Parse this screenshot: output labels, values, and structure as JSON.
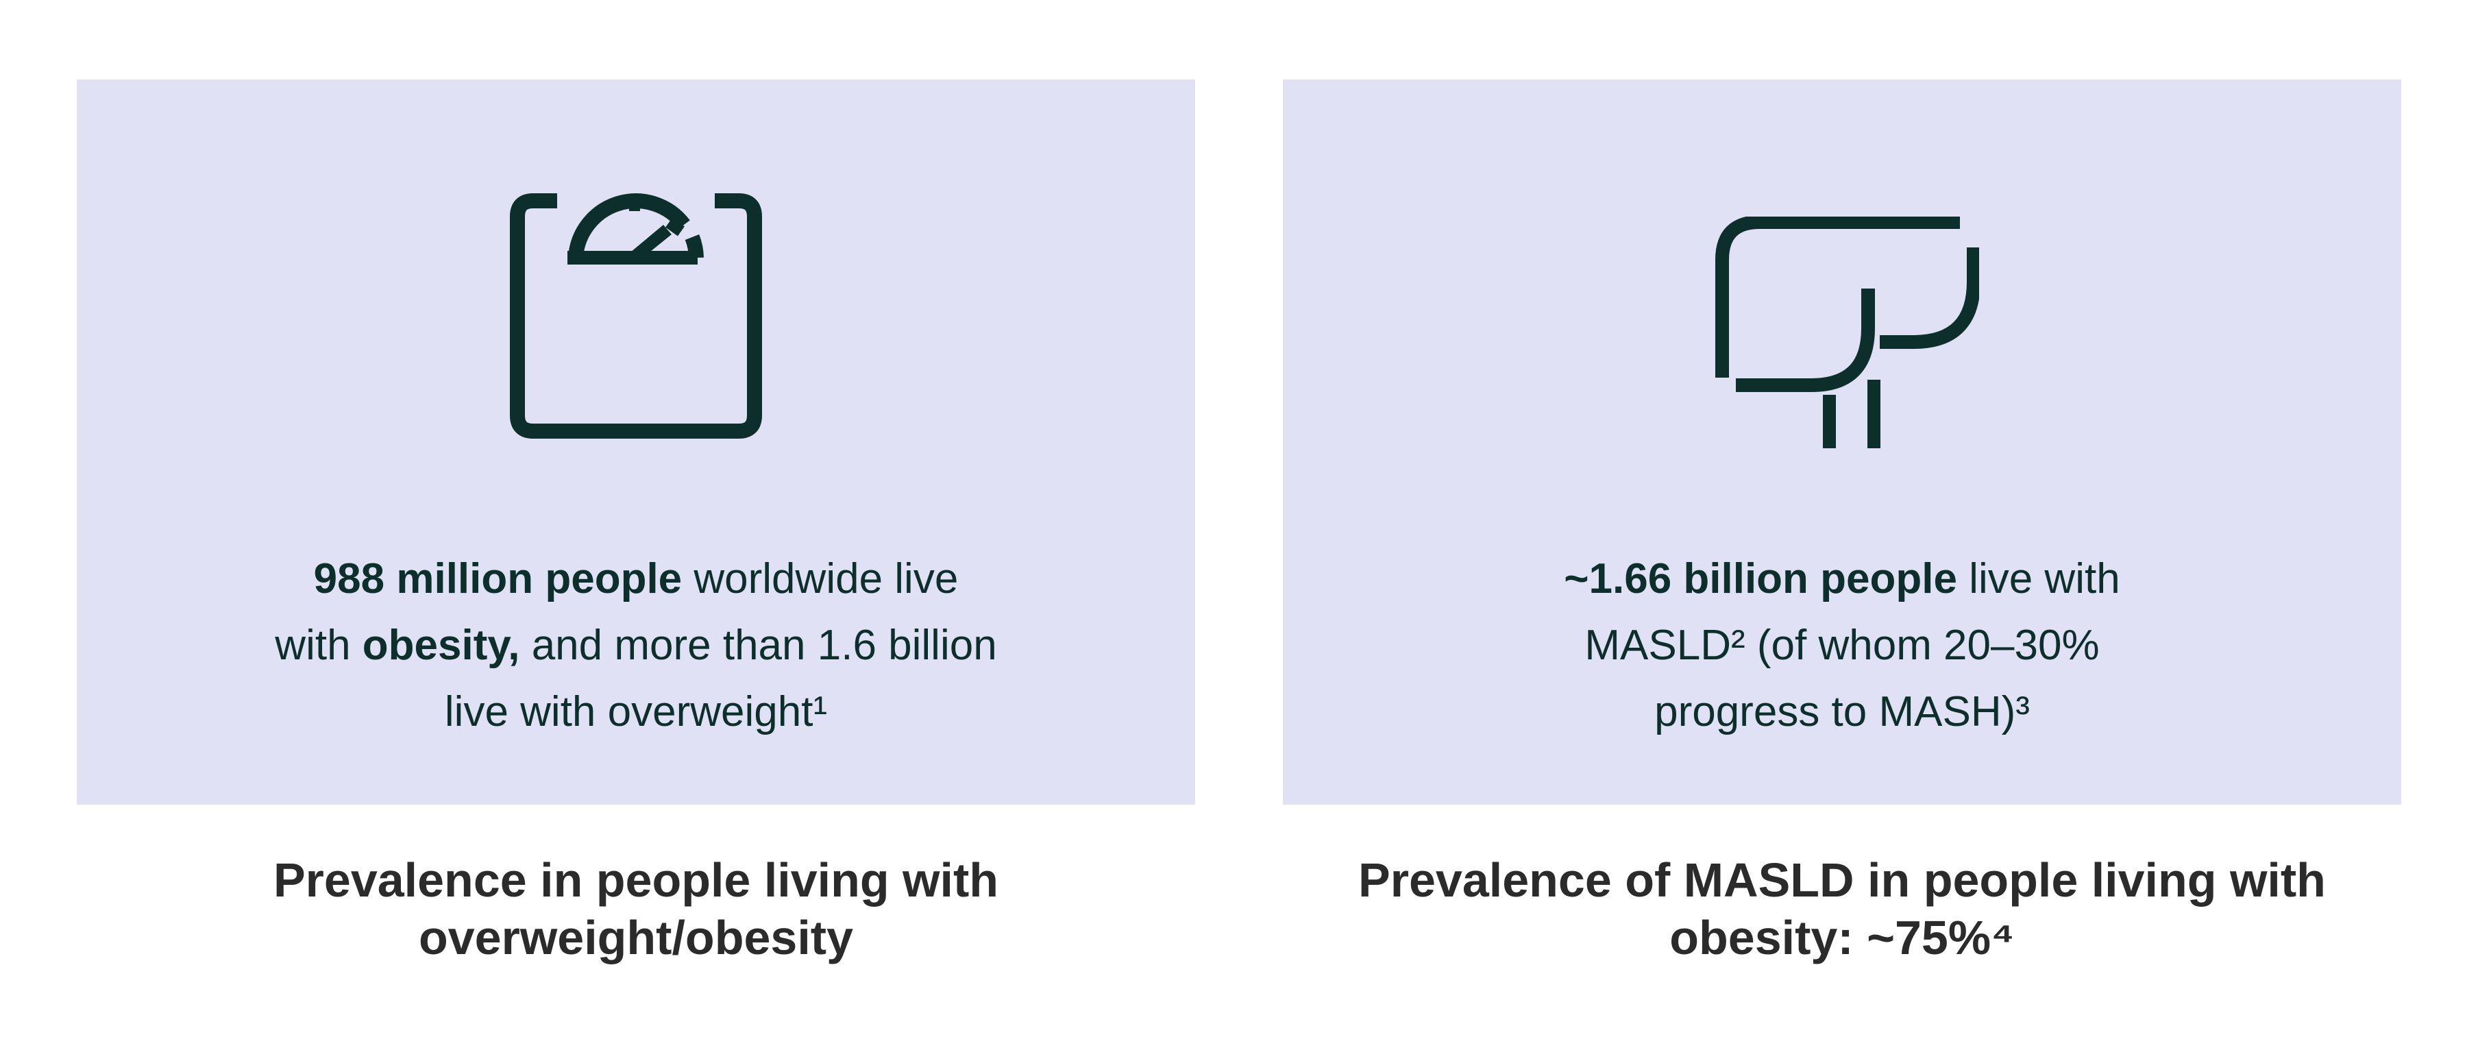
{
  "colors": {
    "card_background": "#e1e1f5",
    "icon_color": "#0c2f2b",
    "stat_text": "#0c2f2b",
    "caption_text": "#2b2b2b"
  },
  "cards": [
    {
      "icon": "weighing-scale-icon",
      "stat_lines": [
        [
          "988 million people",
          " worldwide live"
        ],
        [
          "with ",
          "obesity,",
          " and more than 1.6 billion"
        ],
        [
          "live with overweight¹"
        ]
      ],
      "caption_lines": [
        "Prevalence in people living with",
        "overweight/obesity"
      ]
    },
    {
      "icon": "liver-icon",
      "stat_lines": [
        [
          "~1.66 billion people",
          " live with"
        ],
        [
          "MASLD² (of whom 20–30%"
        ],
        [
          "progress to MASH)³"
        ]
      ],
      "caption_lines": [
        "Prevalence of MASLD in people living with",
        "obesity: ~75%⁴"
      ]
    }
  ]
}
